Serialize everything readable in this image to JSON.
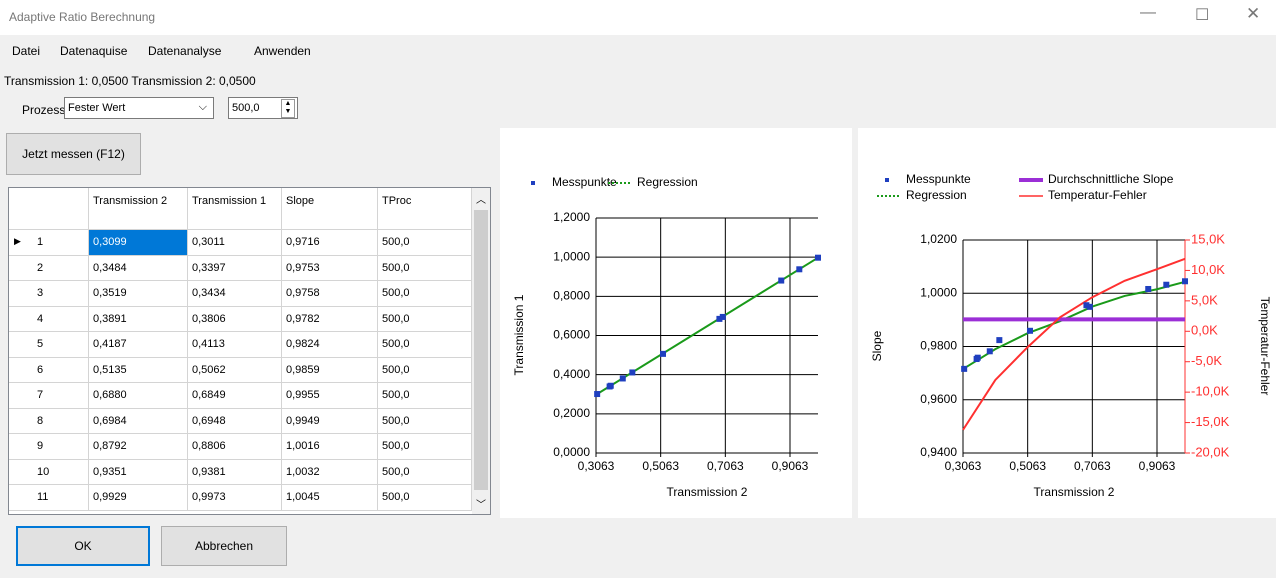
{
  "window": {
    "title": "Adaptive Ratio Berechnung"
  },
  "menu": [
    "Datei",
    "Datenaquise",
    "Datenanalyse",
    "Anwenden"
  ],
  "status": "Transmission 1: 0,0500  Transmission 2: 0,0500",
  "process": {
    "label": "Prozess",
    "mode": "Fester Wert",
    "value": "500,0"
  },
  "measure_button": "Jetzt messen (F12)",
  "table": {
    "columns": [
      "Transmission 2",
      "Transmission 1",
      "Slope",
      "TProc"
    ],
    "rows": [
      [
        "1",
        "0,3099",
        "0,3011",
        "0,9716",
        "500,0"
      ],
      [
        "2",
        "0,3484",
        "0,3397",
        "0,9753",
        "500,0"
      ],
      [
        "3",
        "0,3519",
        "0,3434",
        "0,9758",
        "500,0"
      ],
      [
        "4",
        "0,3891",
        "0,3806",
        "0,9782",
        "500,0"
      ],
      [
        "5",
        "0,4187",
        "0,4113",
        "0,9824",
        "500,0"
      ],
      [
        "6",
        "0,5135",
        "0,5062",
        "0,9859",
        "500,0"
      ],
      [
        "7",
        "0,6880",
        "0,6849",
        "0,9955",
        "500,0"
      ],
      [
        "8",
        "0,6984",
        "0,6948",
        "0,9949",
        "500,0"
      ],
      [
        "9",
        "0,8792",
        "0,8806",
        "1,0016",
        "500,0"
      ],
      [
        "10",
        "0,9351",
        "0,9381",
        "1,0032",
        "500,0"
      ],
      [
        "11",
        "0,9929",
        "0,9973",
        "1,0045",
        "500,0"
      ]
    ]
  },
  "buttons": {
    "ok": "OK",
    "cancel": "Abbrechen"
  },
  "chart_data": [
    {
      "type": "scatter",
      "x_label": "Transmission 2",
      "y_label": "Transmission 1",
      "grid": true,
      "legend": "top",
      "xlim": [
        0.3063,
        0.9929
      ],
      "xticks": [
        {
          "value": 0.3063,
          "label": "0,3063"
        },
        {
          "value": 0.5063,
          "label": "0,5063"
        },
        {
          "value": 0.7063,
          "label": "0,7063"
        },
        {
          "value": 0.9063,
          "label": "0,9063"
        }
      ],
      "ylim": [
        0,
        1.2
      ],
      "yticks": [
        {
          "value": 0,
          "label": "0,0000"
        },
        {
          "value": 0.2,
          "label": "0,2000"
        },
        {
          "value": 0.4,
          "label": "0,4000"
        },
        {
          "value": 0.6,
          "label": "0,6000"
        },
        {
          "value": 0.8,
          "label": "0,8000"
        },
        {
          "value": 1,
          "label": "1,0000"
        },
        {
          "value": 1.2,
          "label": "1,2000"
        }
      ],
      "series": [
        {
          "name": "Messpunkte",
          "color": "#1f3fbf",
          "style": "marker",
          "x": [
            0.3099,
            0.3484,
            0.3519,
            0.3891,
            0.4187,
            0.5135,
            0.688,
            0.6984,
            0.8792,
            0.9351,
            0.9929
          ],
          "values": [
            0.3011,
            0.3397,
            0.3434,
            0.3806,
            0.4113,
            0.5062,
            0.6849,
            0.6948,
            0.8806,
            0.9381,
            0.9973
          ]
        },
        {
          "name": "Regression",
          "color": "#1a9a1a",
          "style": "line",
          "x": [
            0.3099,
            0.9929
          ],
          "values": [
            0.3011,
            0.9973
          ]
        }
      ]
    },
    {
      "type": "scatter",
      "x_label": "Transmission 2",
      "y_label": "Slope",
      "y2_label": "Temperatur-Fehler",
      "grid": true,
      "legend": "top",
      "xlim": [
        0.3063,
        0.9929
      ],
      "xticks": [
        {
          "value": 0.3063,
          "label": "0,3063"
        },
        {
          "value": 0.5063,
          "label": "0,5063"
        },
        {
          "value": 0.7063,
          "label": "0,7063"
        },
        {
          "value": 0.9063,
          "label": "0,9063"
        }
      ],
      "ylim": [
        0.94,
        1.02
      ],
      "yticks": [
        {
          "value": 0.94,
          "label": "0,9400"
        },
        {
          "value": 0.96,
          "label": "0,9600"
        },
        {
          "value": 0.98,
          "label": "0,9800"
        },
        {
          "value": 1,
          "label": "1,0000"
        },
        {
          "value": 1.02,
          "label": "1,0200"
        }
      ],
      "y2lim": [
        -20,
        15
      ],
      "y2ticks": [
        {
          "value": -20,
          "label": "-20,0K"
        },
        {
          "value": -15,
          "label": "-15,0K"
        },
        {
          "value": -10,
          "label": "-10,0K"
        },
        {
          "value": -5,
          "label": "-5,0K"
        },
        {
          "value": 0,
          "label": "0,0K"
        },
        {
          "value": 5,
          "label": "5,0K"
        },
        {
          "value": 10,
          "label": "10,0K"
        },
        {
          "value": 15,
          "label": "15,0K"
        }
      ],
      "series": [
        {
          "name": "Messpunkte",
          "color": "#1f3fbf",
          "style": "marker",
          "x": [
            0.3099,
            0.3484,
            0.3519,
            0.3891,
            0.4187,
            0.5135,
            0.688,
            0.6984,
            0.8792,
            0.9351,
            0.9929
          ],
          "values": [
            0.9716,
            0.9753,
            0.9758,
            0.9782,
            0.9824,
            0.9859,
            0.9955,
            0.9949,
            1.0016,
            1.0032,
            1.0045
          ]
        },
        {
          "name": "Regression",
          "color": "#1a9a1a",
          "style": "line",
          "x": [
            0.3099,
            0.4063,
            0.5063,
            0.6063,
            0.7063,
            0.8063,
            0.9063,
            0.9929
          ],
          "values": [
            0.9718,
            0.979,
            0.985,
            0.9895,
            0.995,
            0.999,
            1.0015,
            1.0043
          ]
        },
        {
          "name": "Durchschnittliche Slope",
          "color": "#9b2fd6",
          "style": "line",
          "x": [
            0.3063,
            0.9929
          ],
          "values": [
            0.9902,
            0.9902
          ]
        },
        {
          "name": "Temperatur-Fehler",
          "color": "#ff3030",
          "style": "line",
          "axis": "y2",
          "x": [
            0.3063,
            0.4063,
            0.5063,
            0.6063,
            0.7063,
            0.8063,
            0.9063,
            0.9929
          ],
          "values": [
            -16.2,
            -8,
            -2.6,
            2.3,
            5.6,
            8.3,
            10.2,
            11.9
          ]
        }
      ]
    }
  ]
}
